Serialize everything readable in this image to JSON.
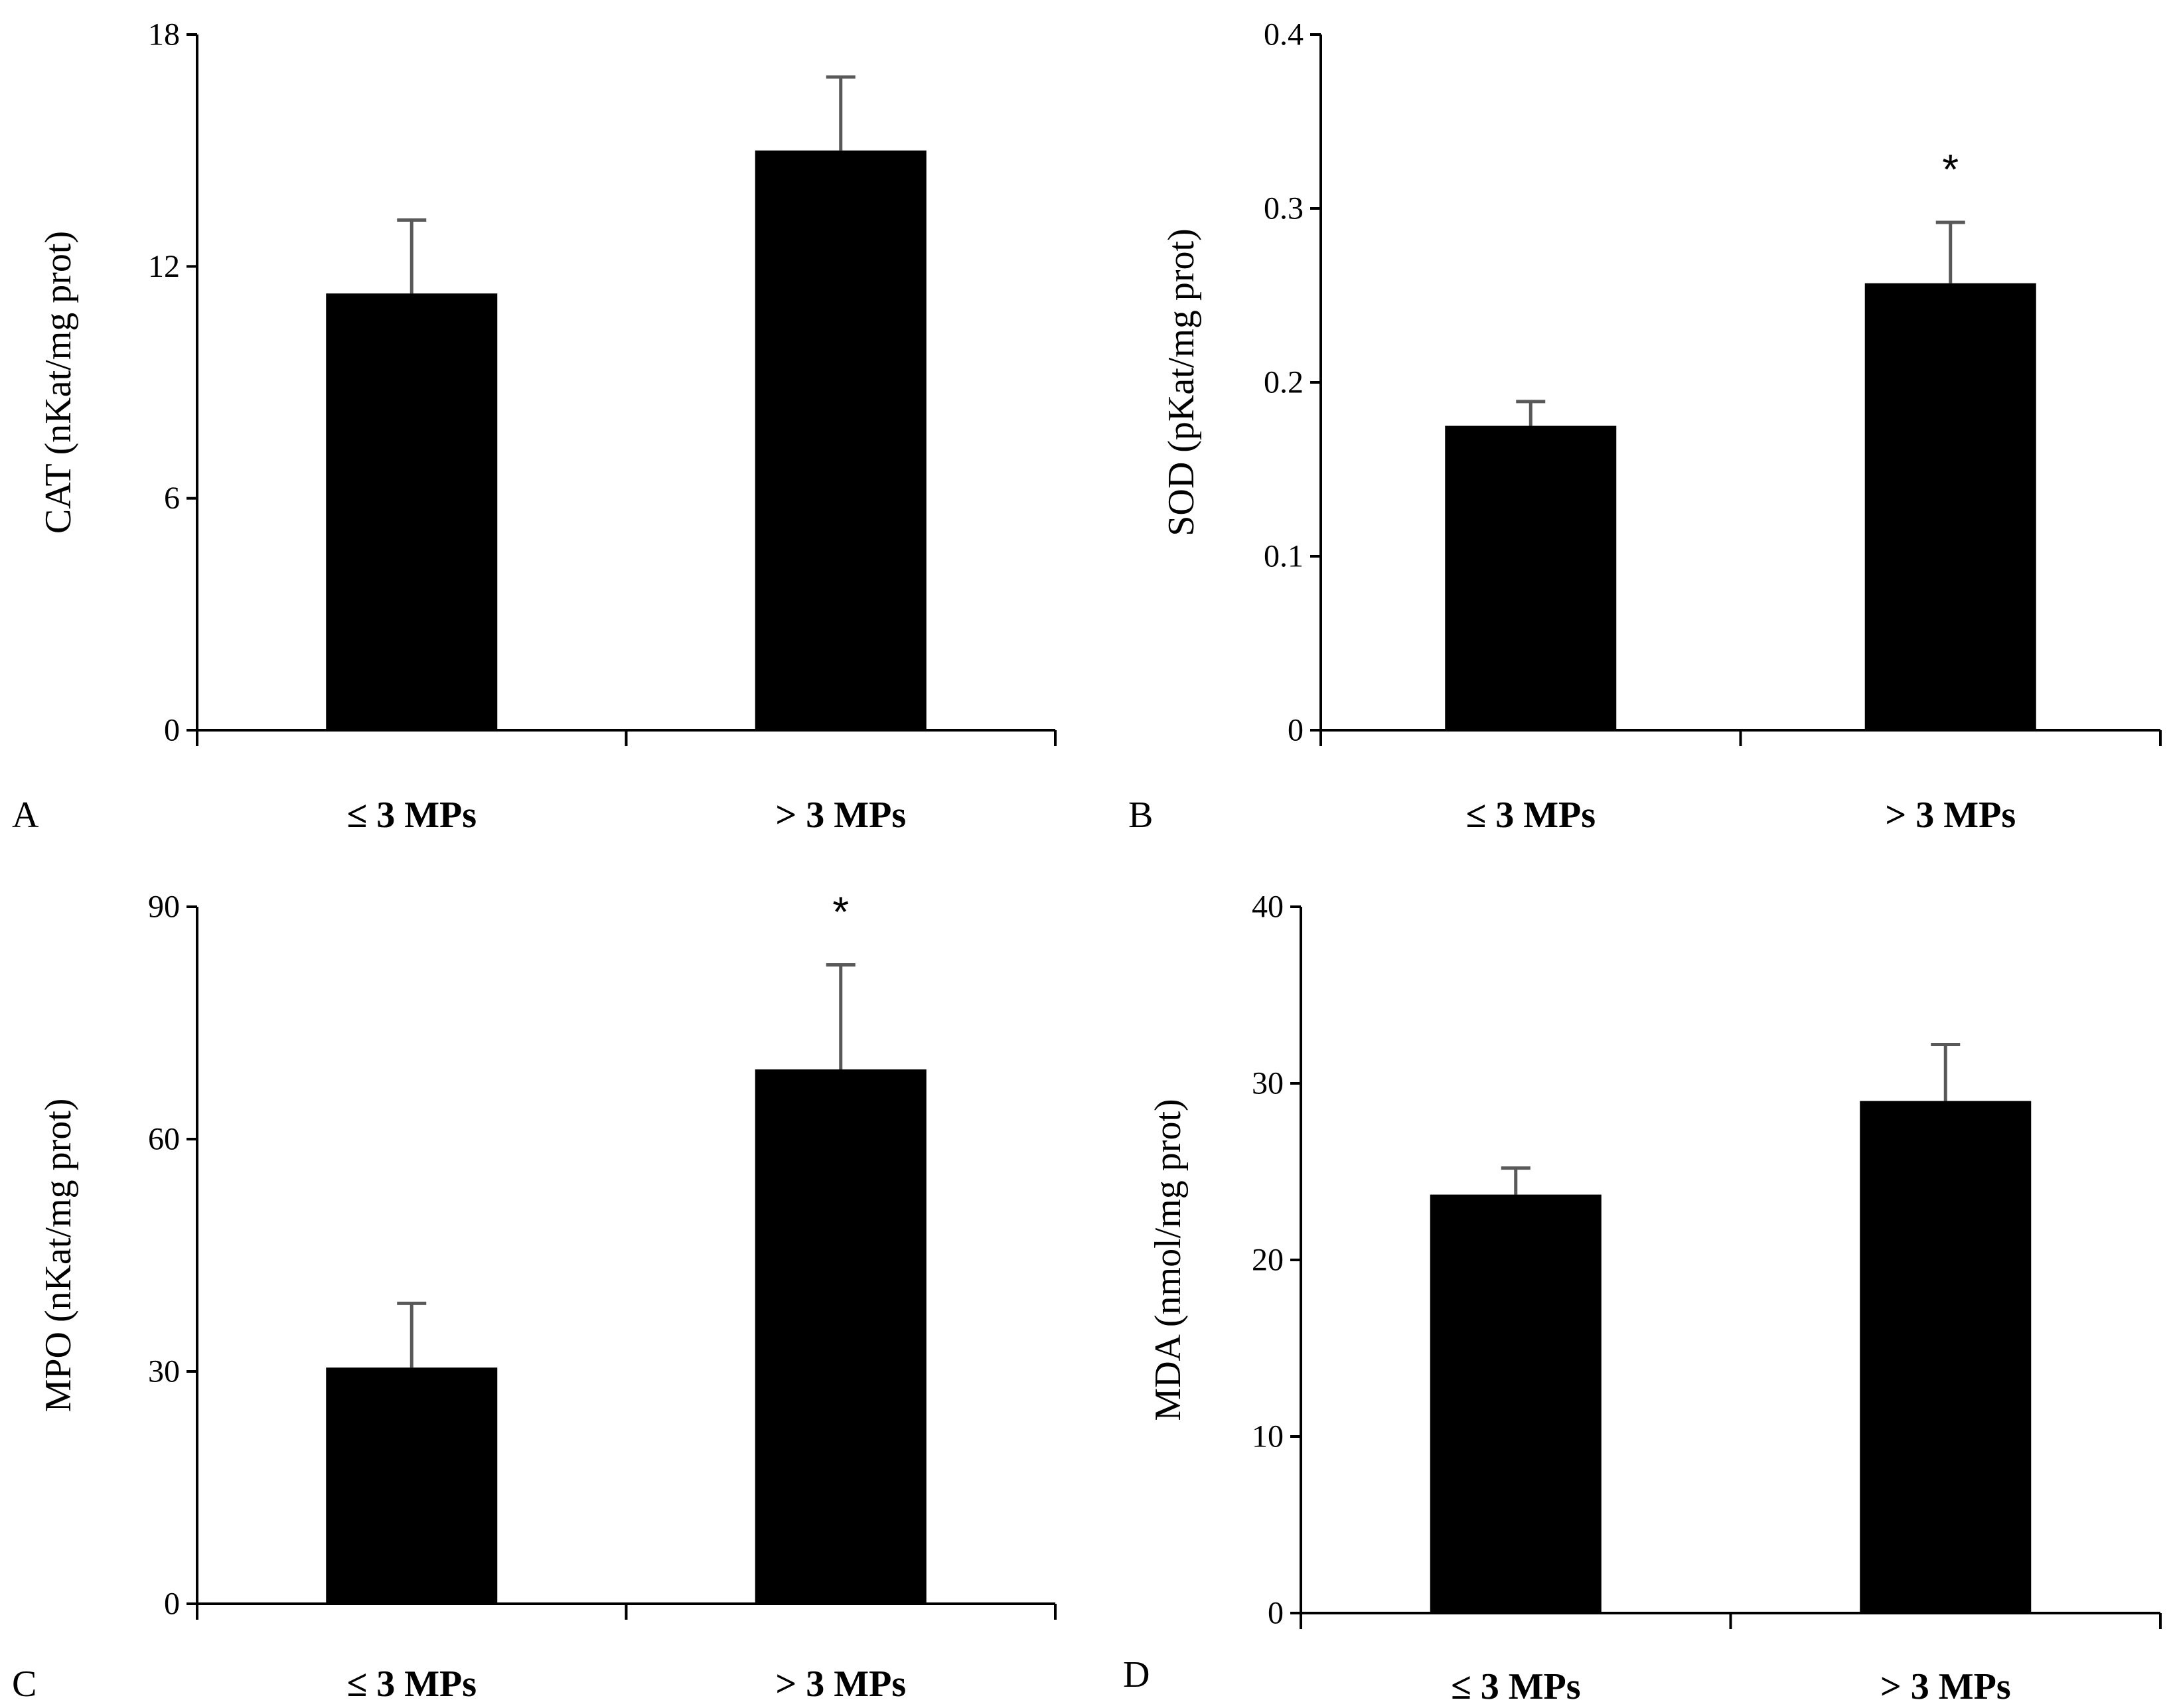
{
  "chart_data": [
    {
      "panel": "A",
      "type": "bar",
      "categories": [
        "≤ 3 MPs",
        "> 3 MPs"
      ],
      "values": [
        11.3,
        15.0
      ],
      "errors": [
        1.9,
        1.9
      ],
      "significance": [
        "",
        ""
      ],
      "ylabel": "CAT (nKat/mg prot)",
      "ylim": [
        0,
        18
      ],
      "yticks": [
        0,
        6,
        12,
        18
      ],
      "ytick_labels": [
        "0",
        "6",
        "12",
        "18"
      ],
      "bar_color": "#000000"
    },
    {
      "panel": "B",
      "type": "bar",
      "categories": [
        "≤ 3 MPs",
        "> 3 MPs"
      ],
      "values": [
        0.175,
        0.257
      ],
      "errors": [
        0.014,
        0.035
      ],
      "significance": [
        "",
        "*"
      ],
      "ylabel": "SOD (pKat/mg prot)",
      "ylim": [
        0,
        0.4
      ],
      "yticks": [
        0,
        0.1,
        0.2,
        0.3,
        0.4
      ],
      "ytick_labels": [
        "0",
        "0.1",
        "0.2",
        "0.3",
        "0.4"
      ],
      "bar_color": "#000000"
    },
    {
      "panel": "C",
      "type": "bar",
      "categories": [
        "≤ 3 MPs",
        "> 3 MPs"
      ],
      "values": [
        30.5,
        69.0
      ],
      "errors": [
        8.3,
        13.5
      ],
      "significance": [
        "",
        "*"
      ],
      "ylabel": "MPO (nKat/mg prot)",
      "ylim": [
        0,
        90
      ],
      "yticks": [
        0,
        30,
        60,
        90
      ],
      "ytick_labels": [
        "0",
        "30",
        "60",
        "90"
      ],
      "bar_color": "#000000"
    },
    {
      "panel": "D",
      "type": "bar",
      "categories": [
        "≤ 3 MPs",
        "> 3 MPs"
      ],
      "values": [
        23.7,
        29.0
      ],
      "errors": [
        1.5,
        3.2
      ],
      "significance": [
        "",
        ""
      ],
      "ylabel": "MDA (nmol/mg prot)",
      "ylim": [
        0,
        40
      ],
      "yticks": [
        0,
        10,
        20,
        30,
        40
      ],
      "ytick_labels": [
        "0",
        "10",
        "20",
        "30",
        "40"
      ],
      "bar_color": "#000000"
    }
  ]
}
